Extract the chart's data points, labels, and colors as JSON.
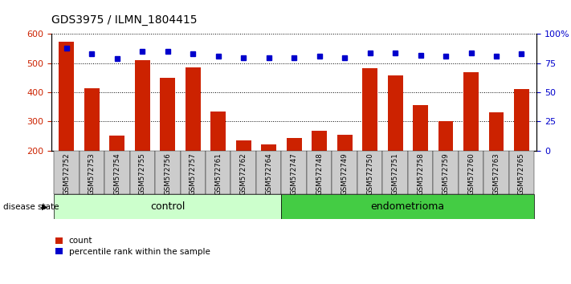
{
  "title": "GDS3975 / ILMN_1804415",
  "samples": [
    "GSM572752",
    "GSM572753",
    "GSM572754",
    "GSM572755",
    "GSM572756",
    "GSM572757",
    "GSM572761",
    "GSM572762",
    "GSM572764",
    "GSM572747",
    "GSM572748",
    "GSM572749",
    "GSM572750",
    "GSM572751",
    "GSM572758",
    "GSM572759",
    "GSM572760",
    "GSM572763",
    "GSM572765"
  ],
  "counts": [
    575,
    415,
    250,
    510,
    450,
    485,
    335,
    235,
    220,
    242,
    268,
    253,
    482,
    457,
    357,
    302,
    470,
    330,
    410
  ],
  "percentiles": [
    88,
    83,
    79,
    85,
    85,
    83,
    81,
    80,
    80,
    80,
    81,
    80,
    84,
    84,
    82,
    81,
    84,
    81,
    83
  ],
  "n_control": 9,
  "n_endometrioma": 10,
  "ylim_left": [
    200,
    600
  ],
  "ylim_right": [
    0,
    100
  ],
  "yticks_left": [
    200,
    300,
    400,
    500,
    600
  ],
  "yticks_right": [
    0,
    25,
    50,
    75,
    100
  ],
  "bar_color": "#cc2200",
  "dot_color": "#0000cc",
  "control_color": "#ccffcc",
  "endometrioma_color": "#44cc44",
  "xtick_bg_color": "#cccccc",
  "ylabel_left_color": "#cc2200",
  "ylabel_right_color": "#0000cc"
}
